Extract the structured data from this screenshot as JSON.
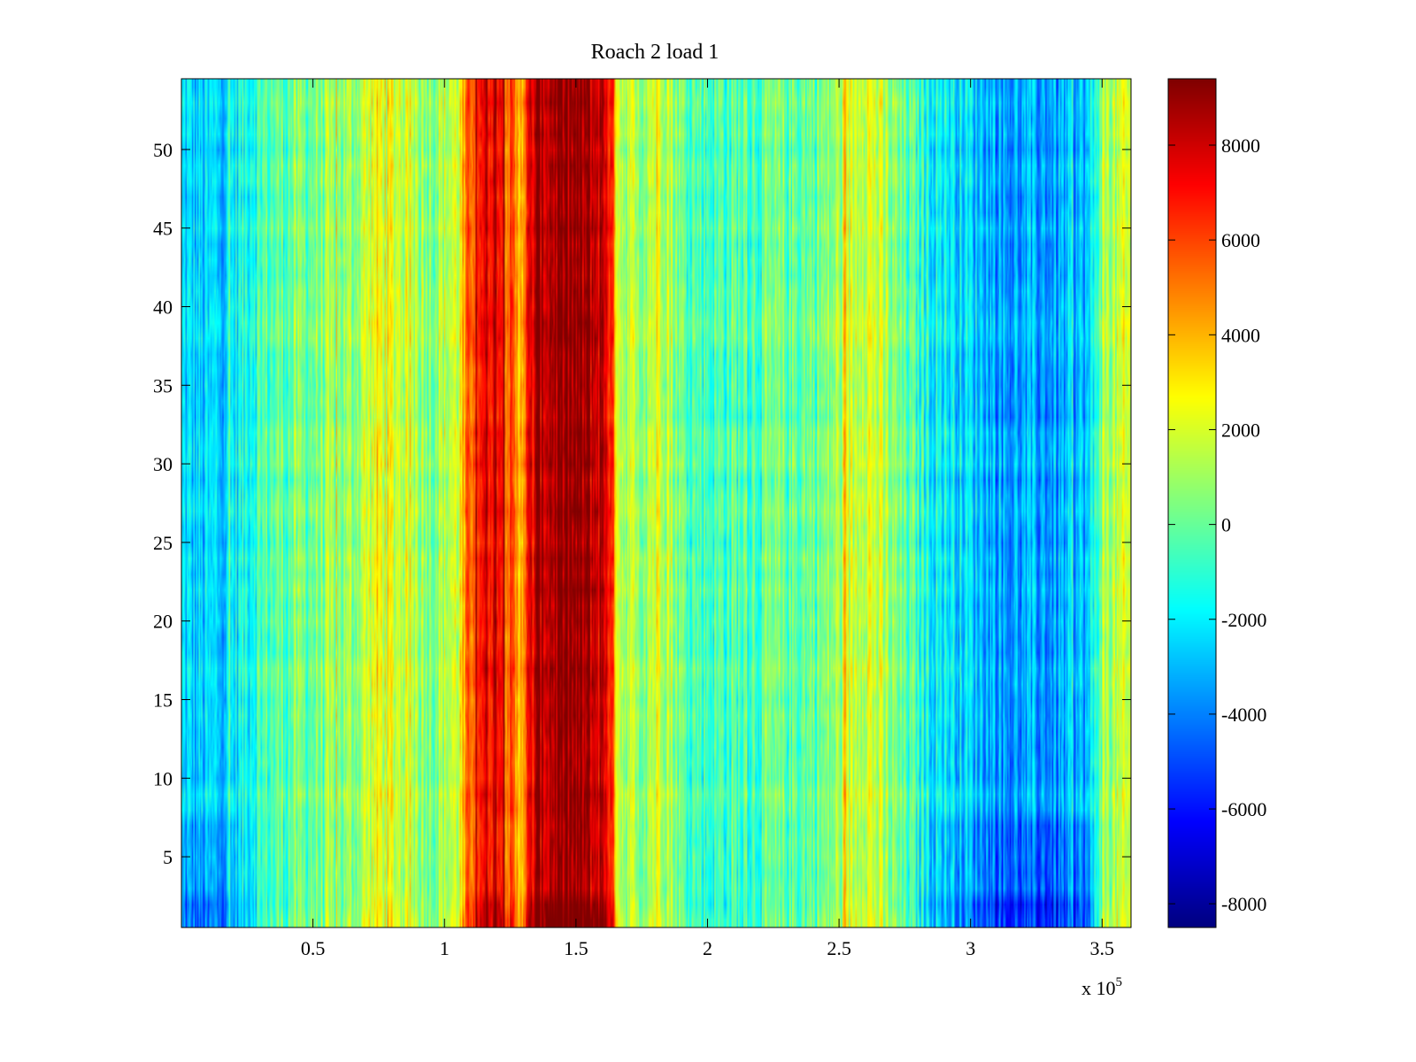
{
  "chart_data": {
    "type": "heatmap",
    "title": "Roach 2 load 1",
    "xlabel": "",
    "ylabel": "",
    "x_exponent_label": "x 10",
    "x_exponent_power": "5",
    "xlim": [
      0,
      3.61
    ],
    "ylim": [
      0.5,
      54.5
    ],
    "x_ticks": [
      0.5,
      1,
      1.5,
      2,
      2.5,
      3,
      3.5
    ],
    "x_tick_labels": [
      "0.5",
      "1",
      "1.5",
      "2",
      "2.5",
      "3",
      "3.5"
    ],
    "y_ticks": [
      5,
      10,
      15,
      20,
      25,
      30,
      35,
      40,
      45,
      50
    ],
    "y_tick_labels": [
      "5",
      "10",
      "15",
      "20",
      "25",
      "30",
      "35",
      "40",
      "45",
      "50"
    ],
    "rows": 54,
    "colorbar": {
      "colormap": "jet",
      "range": [
        -8500,
        9400
      ],
      "ticks": [
        8000,
        6000,
        4000,
        2000,
        0,
        -2000,
        -4000,
        -6000,
        -8000
      ],
      "tick_labels": [
        "8000",
        "6000",
        "4000",
        "2000",
        "0",
        "-2000",
        "-4000",
        "-6000",
        "-8000"
      ]
    },
    "column_profile": [
      {
        "x": 0.0,
        "v": -2500
      },
      {
        "x": 0.1,
        "v": -2800
      },
      {
        "x": 0.2,
        "v": -2000
      },
      {
        "x": 0.3,
        "v": -500
      },
      {
        "x": 0.4,
        "v": 0
      },
      {
        "x": 0.5,
        "v": 300
      },
      {
        "x": 0.65,
        "v": 800
      },
      {
        "x": 0.75,
        "v": 2500
      },
      {
        "x": 0.85,
        "v": 1800
      },
      {
        "x": 0.95,
        "v": 800
      },
      {
        "x": 1.05,
        "v": 2000
      },
      {
        "x": 1.12,
        "v": 7000
      },
      {
        "x": 1.2,
        "v": 8000
      },
      {
        "x": 1.28,
        "v": 4000
      },
      {
        "x": 1.35,
        "v": 8500
      },
      {
        "x": 1.45,
        "v": 9000
      },
      {
        "x": 1.55,
        "v": 8500
      },
      {
        "x": 1.62,
        "v": 8000
      },
      {
        "x": 1.67,
        "v": 1500
      },
      {
        "x": 1.75,
        "v": 1000
      },
      {
        "x": 1.82,
        "v": 2500
      },
      {
        "x": 1.9,
        "v": 0
      },
      {
        "x": 2.0,
        "v": -500
      },
      {
        "x": 2.2,
        "v": -300
      },
      {
        "x": 2.45,
        "v": 300
      },
      {
        "x": 2.6,
        "v": 2500
      },
      {
        "x": 2.7,
        "v": 500
      },
      {
        "x": 2.85,
        "v": -1500
      },
      {
        "x": 3.0,
        "v": -2500
      },
      {
        "x": 3.15,
        "v": -3500
      },
      {
        "x": 3.3,
        "v": -3500
      },
      {
        "x": 3.45,
        "v": -3000
      },
      {
        "x": 3.5,
        "v": 1000
      },
      {
        "x": 3.61,
        "v": 1500
      }
    ]
  }
}
